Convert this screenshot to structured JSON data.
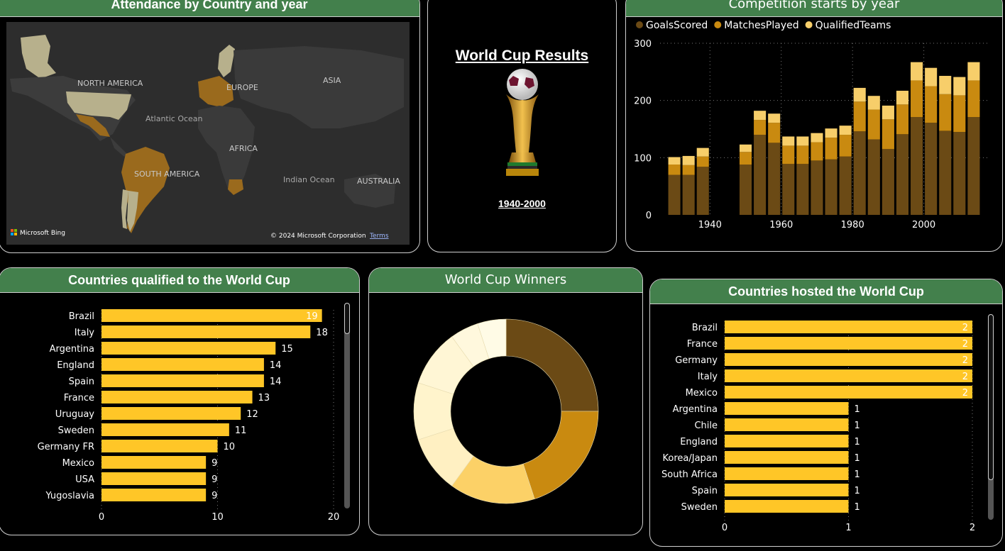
{
  "attendance_card": {
    "title": "Attendance by Country and year",
    "map_labels": [
      "NORTH AMERICA",
      "EUROPE",
      "ASIA",
      "Atlantic Ocean",
      "AFRICA",
      "SOUTH AMERICA",
      "Indian Ocean",
      "AUSTRALIA"
    ],
    "bing_label": "Microsoft Bing",
    "copyright": "© 2024 Microsoft Corporation",
    "terms": "Terms",
    "colors": {
      "land": "#3a3a3a",
      "ocean": "#2d2d2d",
      "highlight_light": "#b7b08c",
      "highlight_gold": "#9a6a1d"
    }
  },
  "results_card": {
    "title": "World Cup Results",
    "range": "1940-2000",
    "trophy_icon": "trophy-icon"
  },
  "chart_data": [
    {
      "id": "competition",
      "type": "bar",
      "stacked": true,
      "title": "Competition starts by year",
      "xlabel": "",
      "ylabel": "",
      "x_ticks": [
        "1940",
        "1960",
        "1980",
        "2000"
      ],
      "y_ticks": [
        "0",
        "100",
        "200",
        "300"
      ],
      "ylim": [
        0,
        300
      ],
      "xlim": [
        1926,
        2018
      ],
      "grid": true,
      "legend": "top-left",
      "x": [
        1930,
        1934,
        1938,
        1950,
        1954,
        1958,
        1962,
        1966,
        1970,
        1974,
        1978,
        1982,
        1986,
        1990,
        1994,
        1998,
        2002,
        2006,
        2010,
        2014
      ],
      "series": [
        {
          "name": "GoalsScored",
          "color": "#6b4a15",
          "values": [
            70,
            70,
            84,
            88,
            140,
            126,
            89,
            89,
            95,
            97,
            102,
            146,
            132,
            115,
            141,
            171,
            161,
            147,
            145,
            171
          ]
        },
        {
          "name": "MatchesPlayed",
          "color": "#c98a10",
          "values": [
            18,
            17,
            18,
            22,
            26,
            35,
            32,
            32,
            32,
            38,
            38,
            52,
            52,
            52,
            52,
            64,
            64,
            64,
            64,
            64
          ]
        },
        {
          "name": "QualifiedTeams",
          "color": "#f7ce6a",
          "values": [
            13,
            16,
            15,
            13,
            16,
            16,
            16,
            16,
            16,
            16,
            16,
            24,
            24,
            24,
            24,
            32,
            32,
            32,
            32,
            32
          ]
        }
      ]
    },
    {
      "id": "qualified",
      "type": "bar",
      "orientation": "horizontal",
      "title": "Countries qualified to the World Cup",
      "xlabel": "",
      "ylabel": "",
      "xlim": [
        0,
        20
      ],
      "x_ticks": [
        "0",
        "10",
        "20"
      ],
      "grid": true,
      "color": "#ffc627",
      "categories": [
        "Brazil",
        "Italy",
        "Argentina",
        "England",
        "Spain",
        "France",
        "Uruguay",
        "Sweden",
        "Germany FR",
        "Mexico",
        "USA",
        "Yugoslavia"
      ],
      "values": [
        19,
        18,
        15,
        14,
        14,
        13,
        12,
        11,
        10,
        9,
        9,
        9
      ],
      "labels": [
        "19",
        "18",
        "15",
        "14",
        "14",
        "13",
        "12",
        "11",
        "10",
        "9",
        "9",
        "9"
      ]
    },
    {
      "id": "winners",
      "type": "pie",
      "donut": true,
      "title": "World Cup Winners",
      "values": [
        5,
        4,
        3,
        2,
        2,
        2,
        1,
        1
      ],
      "colors": [
        "#6b4a15",
        "#c98a10",
        "#fcd167",
        "#fff0c2",
        "#fff4cc",
        "#fff6d5",
        "#fff8dd",
        "#fffbe6"
      ]
    },
    {
      "id": "hosted",
      "type": "bar",
      "orientation": "horizontal",
      "title": "Countries hosted the World Cup",
      "xlabel": "",
      "ylabel": "",
      "xlim": [
        0,
        2
      ],
      "x_ticks": [
        "0",
        "1",
        "2"
      ],
      "grid": true,
      "color": "#ffc627",
      "categories": [
        "Brazil",
        "France",
        "Germany",
        "Italy",
        "Mexico",
        "Argentina",
        "Chile",
        "England",
        "Korea/Japan",
        "South Africa",
        "Spain",
        "Sweden"
      ],
      "values": [
        2,
        2,
        2,
        2,
        2,
        1,
        1,
        1,
        1,
        1,
        1,
        1
      ],
      "labels": [
        "2",
        "2",
        "2",
        "2",
        "2",
        "1",
        "1",
        "1",
        "1",
        "1",
        "1",
        "1"
      ]
    }
  ]
}
